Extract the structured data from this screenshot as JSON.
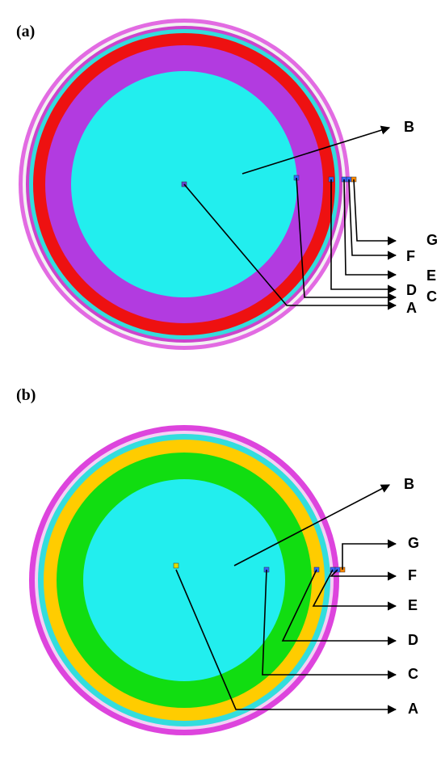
{
  "panels": [
    {
      "label": "(a)",
      "callouts": [
        "B",
        "G",
        "F",
        "E",
        "D",
        "C",
        "A"
      ]
    },
    {
      "label": "(b)",
      "callouts": [
        "B",
        "G",
        "F",
        "E",
        "D",
        "C",
        "A"
      ]
    }
  ]
}
